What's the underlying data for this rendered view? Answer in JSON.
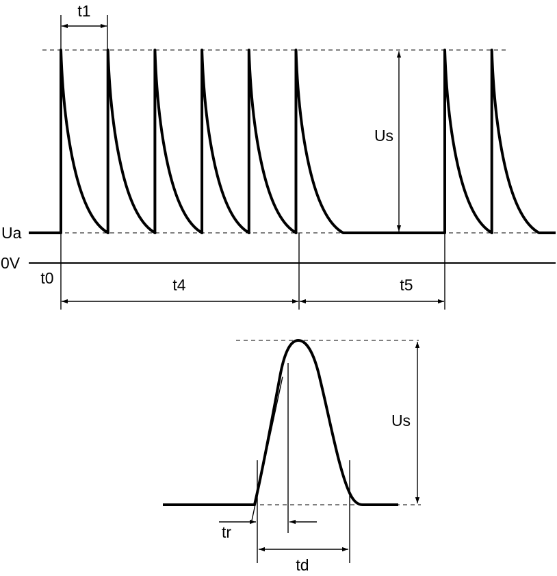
{
  "labels": {
    "t1": "t1",
    "us_top": "Us",
    "ua": "Ua",
    "zero_v": "0V",
    "t0": "t0",
    "t4": "t4",
    "t5": "t5",
    "us_bottom": "Us",
    "tr": "tr",
    "td": "td"
  },
  "burst": {
    "pulses_in_burst": 6,
    "pulses_after_pause": 2
  }
}
